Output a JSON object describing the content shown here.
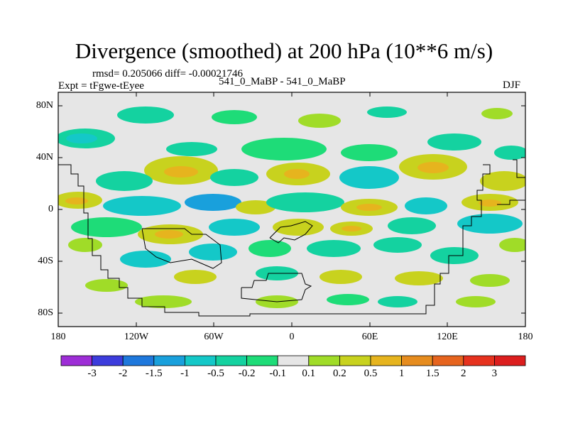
{
  "title": "Divergence (smoothed) at 200 hPa (10**6 m/s)",
  "stats": "rmsd= 0.205066 diff= -0.00021746",
  "left_label": "Expt = tFgwe-tEyee",
  "center_label": "541_0_MaBP - 541_0_MaBP",
  "right_label": "DJF",
  "y_ticks": [
    "80N",
    "40N",
    "0",
    "40S",
    "80S"
  ],
  "x_ticks": [
    "180",
    "120W",
    "60W",
    "0",
    "60E",
    "120E",
    "180"
  ],
  "colorbar": {
    "labels": [
      "-3",
      "-2",
      "-1.5",
      "-1",
      "-0.5",
      "-0.2",
      "-0.1",
      "0.1",
      "0.2",
      "0.5",
      "1",
      "1.5",
      "2",
      "3"
    ],
    "colors": [
      "#9d2dd6",
      "#3c3cdc",
      "#1e78dc",
      "#19a0dc",
      "#14c8c8",
      "#14d2a0",
      "#1edc78",
      "#e6e6e6",
      "#a0dc28",
      "#c8d21e",
      "#e6b41e",
      "#e68c1e",
      "#e6641e",
      "#e6321e",
      "#dc1e1e"
    ]
  },
  "map_colors": {
    "background": "#e6e6e6",
    "strong_pos": "#e6b41e",
    "pos": "#c8d21e",
    "weak_pos": "#a0dc28",
    "weak_neg": "#1edc78",
    "neg": "#14d2a0",
    "strong_neg": "#14c8c8",
    "stronger_neg": "#19a0dc"
  }
}
